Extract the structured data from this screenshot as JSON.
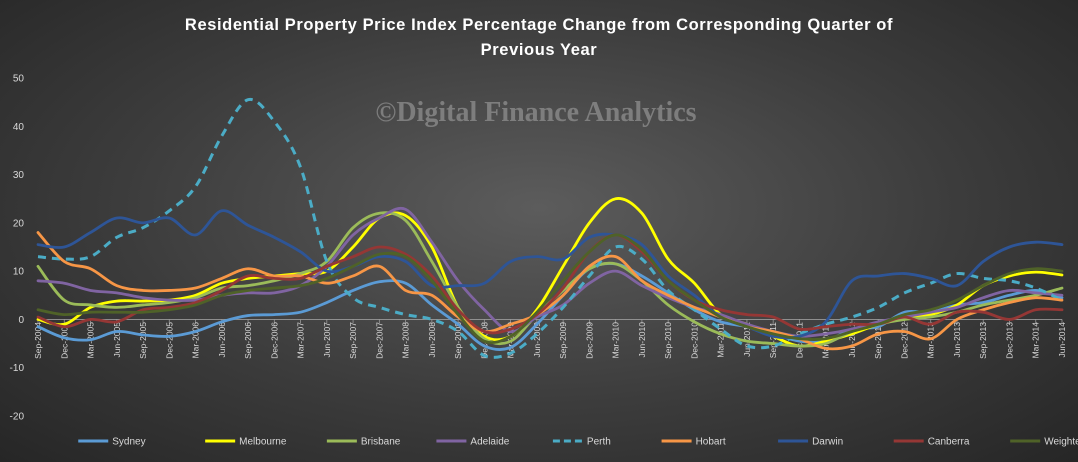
{
  "chart_data": {
    "type": "line",
    "title_lines": [
      "Residential Property Price Index Percentage Change from Corresponding Quarter of",
      "Previous Year"
    ],
    "watermark": "©Digital Finance Analytics",
    "ylim": [
      -20,
      50
    ],
    "yticks": [
      -20,
      -10,
      0,
      10,
      20,
      30,
      40,
      50
    ],
    "grid": false,
    "legend_position": "bottom",
    "categories": [
      "Sep-2004",
      "Dec-2004",
      "Mar-2005",
      "Jun-2005",
      "Sep-2005",
      "Dec-2005",
      "Mar-2006",
      "Jun-2006",
      "Sep-2006",
      "Dec-2006",
      "Mar-2007",
      "Jun-2007",
      "Sep-2007",
      "Dec-2007",
      "Mar-2008",
      "Jun-2008",
      "Sep-2008",
      "Dec-2008",
      "Mar-2009",
      "Jun-2009",
      "Sep-2009",
      "Dec-2009",
      "Mar-2010",
      "Jun-2010",
      "Sep-2010",
      "Dec-2010",
      "Mar-2011",
      "Jun-2011",
      "Sep-2011",
      "Dec-2011",
      "Mar-2012",
      "Jun-2012",
      "Sep-2012",
      "Dec-2012",
      "Mar-2013",
      "Jun-2013",
      "Sep-2013",
      "Dec-2013",
      "Mar-2014",
      "Jun-2014"
    ],
    "series": [
      {
        "name": "Sydney",
        "color": "#5b9bd5",
        "dash": false,
        "values": [
          -1.5,
          -3.8,
          -4.2,
          -2.5,
          -3.2,
          -3.5,
          -2.5,
          -0.5,
          0.8,
          1.0,
          1.5,
          3.5,
          6.0,
          7.8,
          7.5,
          3.0,
          -1.0,
          -5.5,
          -5.8,
          -1.0,
          5.0,
          10.5,
          11.5,
          9.0,
          5.5,
          2.0,
          -0.5,
          -1.5,
          -3.0,
          -4.5,
          -4.5,
          -2.0,
          -1.5,
          1.5,
          1.5,
          3.0,
          3.5,
          5.0,
          6.0,
          4.5
        ]
      },
      {
        "name": "Melbourne",
        "color": "#ffff00",
        "dash": false,
        "values": [
          0,
          -1.0,
          2.5,
          3.8,
          3.8,
          4.0,
          5.0,
          7.5,
          8.5,
          9.0,
          9.5,
          10.0,
          15.0,
          21.0,
          21.5,
          15.0,
          2.5,
          -3.5,
          -3.5,
          2.0,
          11.0,
          20.0,
          25.0,
          22.0,
          12.5,
          7.5,
          1.0,
          -1.0,
          -3.5,
          -5.5,
          -4.5,
          -3.0,
          -1.0,
          0.5,
          1.0,
          3.0,
          7.0,
          9.0,
          9.8,
          9.2
        ]
      },
      {
        "name": "Brisbane",
        "color": "#9bbb59",
        "dash": false,
        "values": [
          11.0,
          4.0,
          3.0,
          2.5,
          3.0,
          3.5,
          4.5,
          6.5,
          7.0,
          8.0,
          9.5,
          12.0,
          19.0,
          22.0,
          20.5,
          12.0,
          2.5,
          -4.0,
          -4.5,
          1.0,
          6.0,
          10.5,
          11.5,
          8.0,
          3.0,
          -0.5,
          -3.0,
          -4.5,
          -5.0,
          -5.5,
          -5.0,
          -2.5,
          -1.0,
          0,
          0.5,
          1.5,
          3.0,
          4.0,
          5.0,
          6.5
        ]
      },
      {
        "name": "Adelaide",
        "color": "#8064a2",
        "dash": false,
        "values": [
          8.0,
          7.5,
          6.0,
          5.5,
          4.5,
          4.0,
          4.0,
          5.0,
          5.5,
          5.5,
          7.0,
          11.0,
          17.5,
          21.0,
          22.8,
          16.0,
          8.0,
          2.0,
          -2.5,
          0.5,
          3.0,
          7.5,
          10.0,
          7.0,
          4.5,
          2.5,
          1.0,
          -1.0,
          -2.5,
          -3.5,
          -3.0,
          -2.0,
          -0.5,
          0.5,
          1.5,
          2.5,
          4.5,
          6.0,
          5.5,
          5.0
        ]
      },
      {
        "name": "Perth",
        "color": "#4bacc6",
        "dash": true,
        "values": [
          13.0,
          12.5,
          13.0,
          17.0,
          19.0,
          22.5,
          27.5,
          38.0,
          45.5,
          41.0,
          31.5,
          12.0,
          4.5,
          2.5,
          1.0,
          0,
          -2.5,
          -7.5,
          -7.0,
          -3.0,
          2.5,
          9.0,
          15.0,
          12.5,
          6.0,
          2.0,
          -2.0,
          -5.5,
          -5.5,
          -3.0,
          -1.0,
          0.5,
          2.5,
          5.5,
          7.5,
          9.5,
          8.5,
          8.0,
          6.5,
          4.0
        ]
      },
      {
        "name": "Hobart",
        "color": "#f79646",
        "dash": false,
        "values": [
          18.0,
          12.0,
          10.5,
          7.0,
          6.0,
          6.0,
          6.5,
          8.5,
          10.5,
          9.0,
          9.0,
          7.5,
          9.0,
          11.0,
          6.0,
          5.0,
          0.5,
          -2.5,
          -1.0,
          1.0,
          5.0,
          11.0,
          13.0,
          8.0,
          5.0,
          2.5,
          0.5,
          -1.5,
          -2.5,
          -4.0,
          -6.0,
          -5.5,
          -3.0,
          -2.5,
          -4.0,
          0,
          2.0,
          3.5,
          4.5,
          4.0
        ]
      },
      {
        "name": "Darwin",
        "color": "#2e5597",
        "dash": false,
        "values": [
          15.5,
          15.0,
          18.0,
          21.0,
          20.0,
          21.0,
          17.5,
          22.5,
          19.5,
          17.0,
          14.0,
          10.0,
          11.0,
          13.0,
          12.0,
          7.0,
          7.0,
          7.5,
          12.0,
          13.0,
          12.5,
          17.0,
          17.5,
          15.5,
          9.0,
          5.0,
          0.5,
          -1.5,
          -3.5,
          -3.5,
          -0.5,
          8.0,
          9.0,
          9.5,
          8.5,
          7.0,
          12.0,
          15.0,
          16.0,
          15.5
        ]
      },
      {
        "name": "Canberra",
        "color": "#953735",
        "dash": false,
        "values": [
          0.5,
          -1.5,
          0,
          -0.5,
          2.0,
          2.5,
          3.5,
          6.0,
          9.0,
          8.5,
          8.5,
          11.0,
          13.0,
          15.0,
          13.5,
          9.0,
          2.0,
          -2.5,
          -2.0,
          1.0,
          6.5,
          14.0,
          17.5,
          14.0,
          8.0,
          4.0,
          2.0,
          1.0,
          0.5,
          -2.0,
          -1.5,
          -1.0,
          -1.0,
          0.5,
          -1.0,
          1.5,
          1.5,
          0,
          2.0,
          2.0
        ]
      },
      {
        "name": "Weighted Average",
        "color": "#4f6228",
        "dash": false,
        "values": [
          2.0,
          1.0,
          1.5,
          1.5,
          1.5,
          2.0,
          3.0,
          5.0,
          6.0,
          6.5,
          7.0,
          8.5,
          11.0,
          13.5,
          13.0,
          8.0,
          1.0,
          -4.5,
          -3.5,
          1.5,
          8.0,
          14.0,
          17.5,
          14.5,
          8.0,
          4.0,
          0.5,
          -1.5,
          -3.0,
          -4.0,
          -4.0,
          -2.5,
          -1.0,
          1.0,
          2.0,
          4.0,
          7.0,
          9.5,
          10.5,
          10.0
        ]
      }
    ]
  }
}
